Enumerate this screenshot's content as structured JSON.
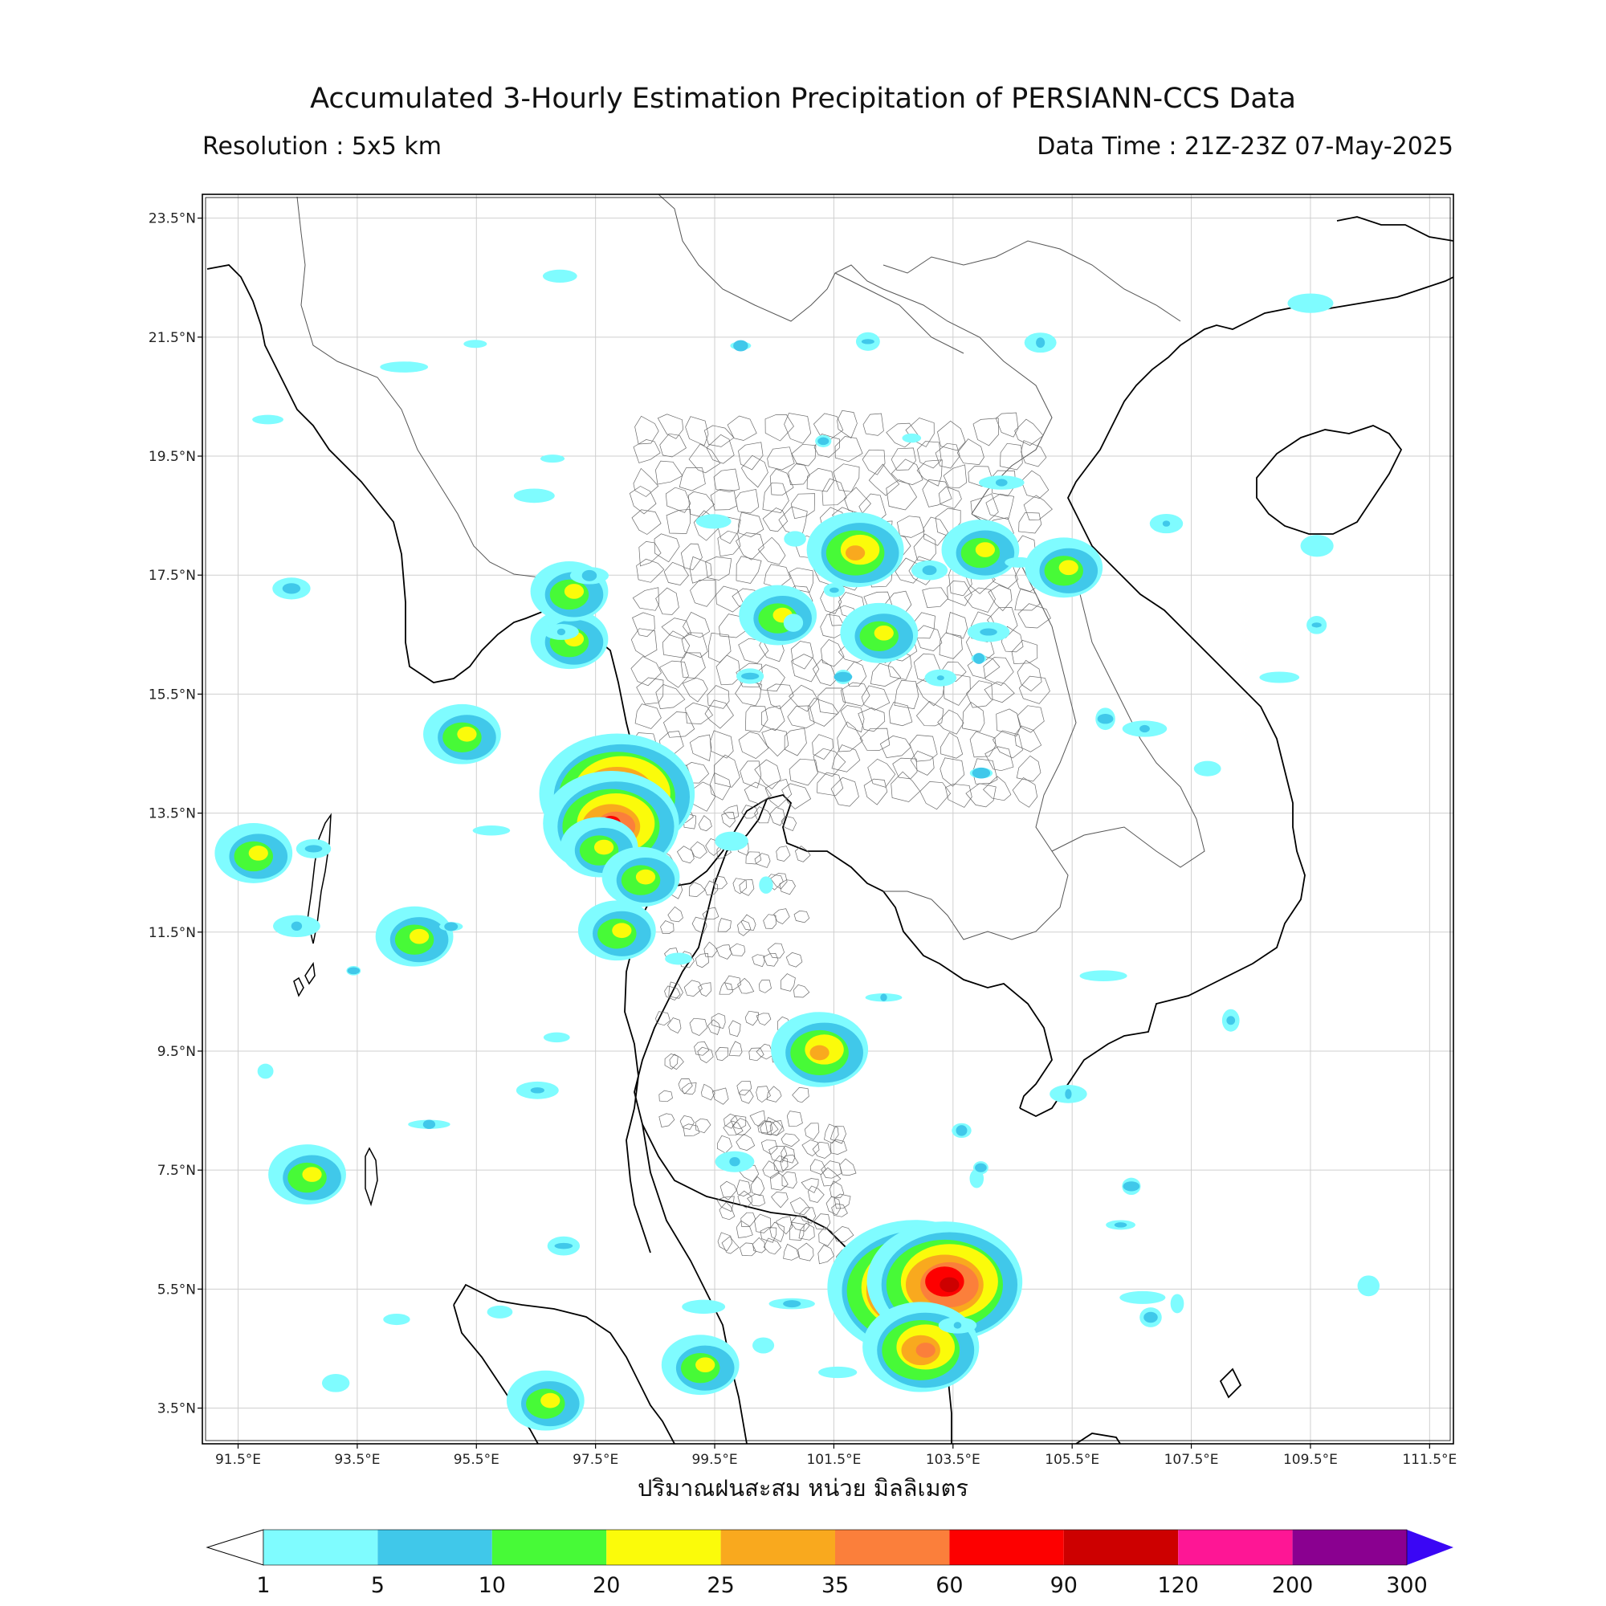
{
  "title": "Accumulated 3-Hourly Estimation Precipitation of PERSIANN-CCS Data",
  "resolution": "Resolution : 5x5 km",
  "data_time": "Data Time : 21Z-23Z 07-May-2025",
  "xlabel": "ปริมาณฝนสะสม หน่วย มิลลิเมตร",
  "map": {
    "lat_ticks": [
      "23.5°N",
      "21.5°N",
      "19.5°N",
      "17.5°N",
      "15.5°N",
      "13.5°N",
      "11.5°N",
      "9.5°N",
      "7.5°N",
      "5.5°N",
      "3.5°N"
    ],
    "lon_ticks": [
      "91.5°E",
      "93.5°E",
      "95.5°E",
      "97.5°E",
      "99.5°E",
      "101.5°E",
      "103.5°E",
      "105.5°E",
      "107.5°E",
      "109.5°E",
      "111.5°E"
    ],
    "lat_values": [
      23.5,
      21.5,
      19.5,
      17.5,
      15.5,
      13.5,
      11.5,
      9.5,
      7.5,
      5.5,
      3.5
    ],
    "lon_values": [
      91.5,
      93.5,
      95.5,
      97.5,
      99.5,
      101.5,
      103.5,
      105.5,
      107.5,
      109.5,
      111.5
    ],
    "lon_range": [
      90.9,
      111.9
    ],
    "lat_range": [
      2.9,
      23.9
    ]
  },
  "colorbar": {
    "levels": [
      "1",
      "5",
      "10",
      "20",
      "25",
      "35",
      "60",
      "90",
      "120",
      "200",
      "300"
    ],
    "colors": [
      "#7ffcff",
      "#40c8ea",
      "#47fa37",
      "#fbfb0a",
      "#f9a91e",
      "#fb7f3b",
      "#fd0000",
      "#cd0000",
      "#fe1695",
      "#8a0090"
    ],
    "over_color": "#3a06f5",
    "under_color": "#ffffff"
  },
  "rain_cells": [
    {
      "lon": 97.9,
      "lat": 13.8,
      "level": 7
    },
    {
      "lon": 97.8,
      "lat": 13.3,
      "level": 6
    },
    {
      "lon": 97.6,
      "lat": 12.9,
      "level": 3
    },
    {
      "lon": 98.3,
      "lat": 12.4,
      "level": 3
    },
    {
      "lon": 102.9,
      "lat": 5.5,
      "level": 8
    },
    {
      "lon": 103.4,
      "lat": 5.6,
      "level": 7
    },
    {
      "lon": 103.0,
      "lat": 4.5,
      "level": 5
    },
    {
      "lon": 92.7,
      "lat": 7.4,
      "level": 3
    },
    {
      "lon": 104.0,
      "lat": 17.9,
      "level": 3
    },
    {
      "lon": 105.4,
      "lat": 17.6,
      "level": 3
    },
    {
      "lon": 102.3,
      "lat": 16.5,
      "level": 3
    },
    {
      "lon": 100.6,
      "lat": 16.8,
      "level": 3
    },
    {
      "lon": 101.9,
      "lat": 17.9,
      "level": 4
    },
    {
      "lon": 95.3,
      "lat": 14.8,
      "level": 3
    },
    {
      "lon": 94.5,
      "lat": 11.4,
      "level": 3
    },
    {
      "lon": 91.8,
      "lat": 12.8,
      "level": 3
    },
    {
      "lon": 97.1,
      "lat": 16.4,
      "level": 3
    },
    {
      "lon": 97.1,
      "lat": 17.2,
      "level": 3
    },
    {
      "lon": 101.3,
      "lat": 9.5,
      "level": 4
    },
    {
      "lon": 97.9,
      "lat": 11.5,
      "level": 3
    },
    {
      "lon": 99.3,
      "lat": 4.2,
      "level": 3
    },
    {
      "lon": 96.7,
      "lat": 3.6,
      "level": 3
    }
  ]
}
